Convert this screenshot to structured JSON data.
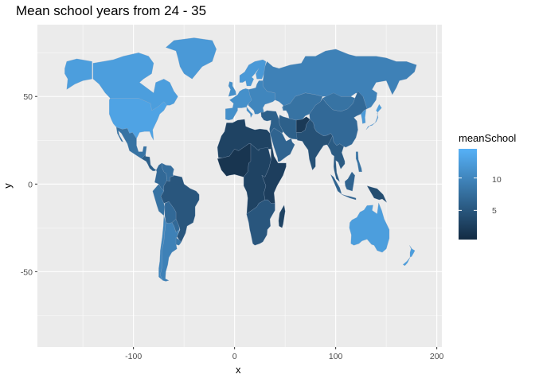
{
  "title": "Mean school years from 24 - 35",
  "chart_data": {
    "type": "choropleth",
    "title": "Mean school years from 24 - 35",
    "xlabel": "x",
    "ylabel": "y",
    "xlim": [
      -195,
      205
    ],
    "ylim": [
      -93,
      91
    ],
    "x_ticks": [
      "-100",
      "0",
      "100",
      "200"
    ],
    "x_tick_values": [
      -100,
      0,
      100,
      200
    ],
    "y_ticks": [
      "50",
      "0",
      "-50"
    ],
    "y_tick_values": [
      50,
      0,
      -50
    ],
    "grid": true,
    "legend": {
      "title": "meanSchool",
      "position": "right",
      "ticks": [
        "10",
        "5"
      ],
      "tick_values": [
        10,
        5
      ],
      "range": [
        0.5,
        14.5
      ],
      "low_color": "#132b43",
      "high_color": "#56b1f7"
    },
    "regions": [
      {
        "name": "Canada",
        "value": 12.5
      },
      {
        "name": "Alaska",
        "value": 12.5
      },
      {
        "name": "Greenland",
        "value": 12
      },
      {
        "name": "United States",
        "value": 13
      },
      {
        "name": "Mexico",
        "value": 8
      },
      {
        "name": "Central America",
        "value": 6
      },
      {
        "name": "Colombia",
        "value": 7
      },
      {
        "name": "Venezuela",
        "value": 7.5
      },
      {
        "name": "Brazil",
        "value": 5
      },
      {
        "name": "Peru",
        "value": 8
      },
      {
        "name": "Bolivia",
        "value": 7
      },
      {
        "name": "Argentina",
        "value": 9.5
      },
      {
        "name": "Chile",
        "value": 10
      },
      {
        "name": "Paraguay",
        "value": 7
      },
      {
        "name": "Uruguay",
        "value": 8.5
      },
      {
        "name": "Scandinavia",
        "value": 12
      },
      {
        "name": "Western Europe",
        "value": 11
      },
      {
        "name": "Eastern Europe",
        "value": 10
      },
      {
        "name": "Russia",
        "value": 9.5
      },
      {
        "name": "North Africa",
        "value": 3
      },
      {
        "name": "West Africa",
        "value": 1.5
      },
      {
        "name": "Central Africa",
        "value": 3
      },
      {
        "name": "East Africa",
        "value": 2.5
      },
      {
        "name": "Southern Africa",
        "value": 5
      },
      {
        "name": "Madagascar",
        "value": 3
      },
      {
        "name": "Middle East",
        "value": 6
      },
      {
        "name": "Arabia",
        "value": 6.5
      },
      {
        "name": "Iran",
        "value": 6
      },
      {
        "name": "Central Asia",
        "value": 8
      },
      {
        "name": "Afghanistan",
        "value": 2
      },
      {
        "name": "India",
        "value": 4.5
      },
      {
        "name": "China",
        "value": 7
      },
      {
        "name": "Mongolia",
        "value": 8
      },
      {
        "name": "Japan",
        "value": 12.5
      },
      {
        "name": "Korea",
        "value": 12
      },
      {
        "name": "Southeast Asia",
        "value": 5.5
      },
      {
        "name": "Indonesia",
        "value": 6.5
      },
      {
        "name": "Philippines",
        "value": 8
      },
      {
        "name": "Papua New Guinea",
        "value": 4
      },
      {
        "name": "Australia",
        "value": 12.5
      },
      {
        "name": "New Zealand",
        "value": 12.5
      }
    ]
  }
}
